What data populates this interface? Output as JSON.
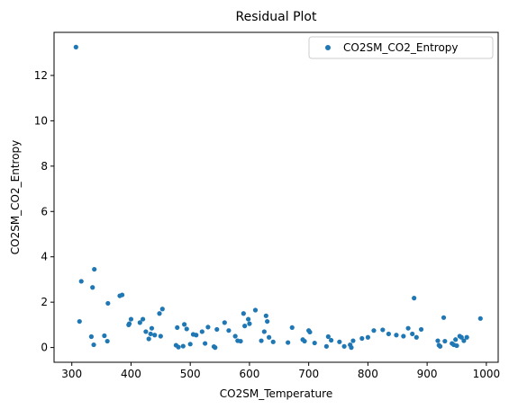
{
  "chart_data": {
    "type": "scatter",
    "title": "Residual Plot",
    "xlabel": "CO2SM_Temperature",
    "ylabel": "CO2SM_CO2_Entropy",
    "xlim": [
      270,
      1020
    ],
    "ylim": [
      -0.65,
      13.9
    ],
    "xticks": [
      300,
      400,
      500,
      600,
      700,
      800,
      900,
      1000
    ],
    "yticks": [
      0,
      2,
      4,
      6,
      8,
      10,
      12
    ],
    "grid": false,
    "legend_position": "top-right",
    "series": [
      {
        "name": "CO2SM_CO2_Entropy",
        "color": "#1f77b4",
        "points": [
          [
            307,
            13.25
          ],
          [
            313,
            1.15
          ],
          [
            316,
            2.92
          ],
          [
            333,
            0.48
          ],
          [
            335,
            2.65
          ],
          [
            337,
            0.12
          ],
          [
            338,
            3.45
          ],
          [
            355,
            0.52
          ],
          [
            360,
            0.28
          ],
          [
            361,
            1.95
          ],
          [
            381,
            2.28
          ],
          [
            385,
            2.32
          ],
          [
            396,
            1.0
          ],
          [
            397,
            1.05
          ],
          [
            400,
            1.25
          ],
          [
            415,
            1.1
          ],
          [
            420,
            1.25
          ],
          [
            425,
            0.7
          ],
          [
            430,
            0.38
          ],
          [
            433,
            0.6
          ],
          [
            435,
            0.85
          ],
          [
            440,
            0.55
          ],
          [
            448,
            1.5
          ],
          [
            450,
            0.5
          ],
          [
            453,
            1.7
          ],
          [
            476,
            0.1
          ],
          [
            478,
            0.88
          ],
          [
            480,
            0.02
          ],
          [
            488,
            0.06
          ],
          [
            490,
            1.02
          ],
          [
            494,
            0.82
          ],
          [
            500,
            0.15
          ],
          [
            505,
            0.58
          ],
          [
            510,
            0.55
          ],
          [
            520,
            0.7
          ],
          [
            525,
            0.18
          ],
          [
            530,
            0.9
          ],
          [
            540,
            0.04
          ],
          [
            542,
            0.0
          ],
          [
            545,
            0.8
          ],
          [
            558,
            1.1
          ],
          [
            565,
            0.75
          ],
          [
            576,
            0.5
          ],
          [
            580,
            0.3
          ],
          [
            585,
            0.28
          ],
          [
            590,
            1.5
          ],
          [
            592,
            0.95
          ],
          [
            598,
            1.25
          ],
          [
            600,
            1.05
          ],
          [
            610,
            1.65
          ],
          [
            620,
            0.3
          ],
          [
            625,
            0.7
          ],
          [
            628,
            1.4
          ],
          [
            630,
            1.15
          ],
          [
            633,
            0.45
          ],
          [
            640,
            0.25
          ],
          [
            665,
            0.22
          ],
          [
            672,
            0.88
          ],
          [
            690,
            0.35
          ],
          [
            693,
            0.28
          ],
          [
            700,
            0.75
          ],
          [
            702,
            0.68
          ],
          [
            710,
            0.2
          ],
          [
            730,
            0.05
          ],
          [
            733,
            0.48
          ],
          [
            738,
            0.32
          ],
          [
            752,
            0.25
          ],
          [
            760,
            0.05
          ],
          [
            770,
            0.12
          ],
          [
            772,
            0.0
          ],
          [
            775,
            0.3
          ],
          [
            790,
            0.4
          ],
          [
            800,
            0.45
          ],
          [
            810,
            0.75
          ],
          [
            825,
            0.78
          ],
          [
            835,
            0.6
          ],
          [
            848,
            0.55
          ],
          [
            860,
            0.5
          ],
          [
            868,
            0.85
          ],
          [
            875,
            0.6
          ],
          [
            878,
            2.18
          ],
          [
            882,
            0.45
          ],
          [
            890,
            0.8
          ],
          [
            918,
            0.3
          ],
          [
            920,
            0.1
          ],
          [
            922,
            0.05
          ],
          [
            928,
            1.32
          ],
          [
            930,
            0.28
          ],
          [
            942,
            0.18
          ],
          [
            945,
            0.12
          ],
          [
            948,
            0.35
          ],
          [
            950,
            0.08
          ],
          [
            955,
            0.5
          ],
          [
            958,
            0.45
          ],
          [
            962,
            0.3
          ],
          [
            967,
            0.45
          ],
          [
            990,
            1.28
          ]
        ]
      }
    ]
  }
}
